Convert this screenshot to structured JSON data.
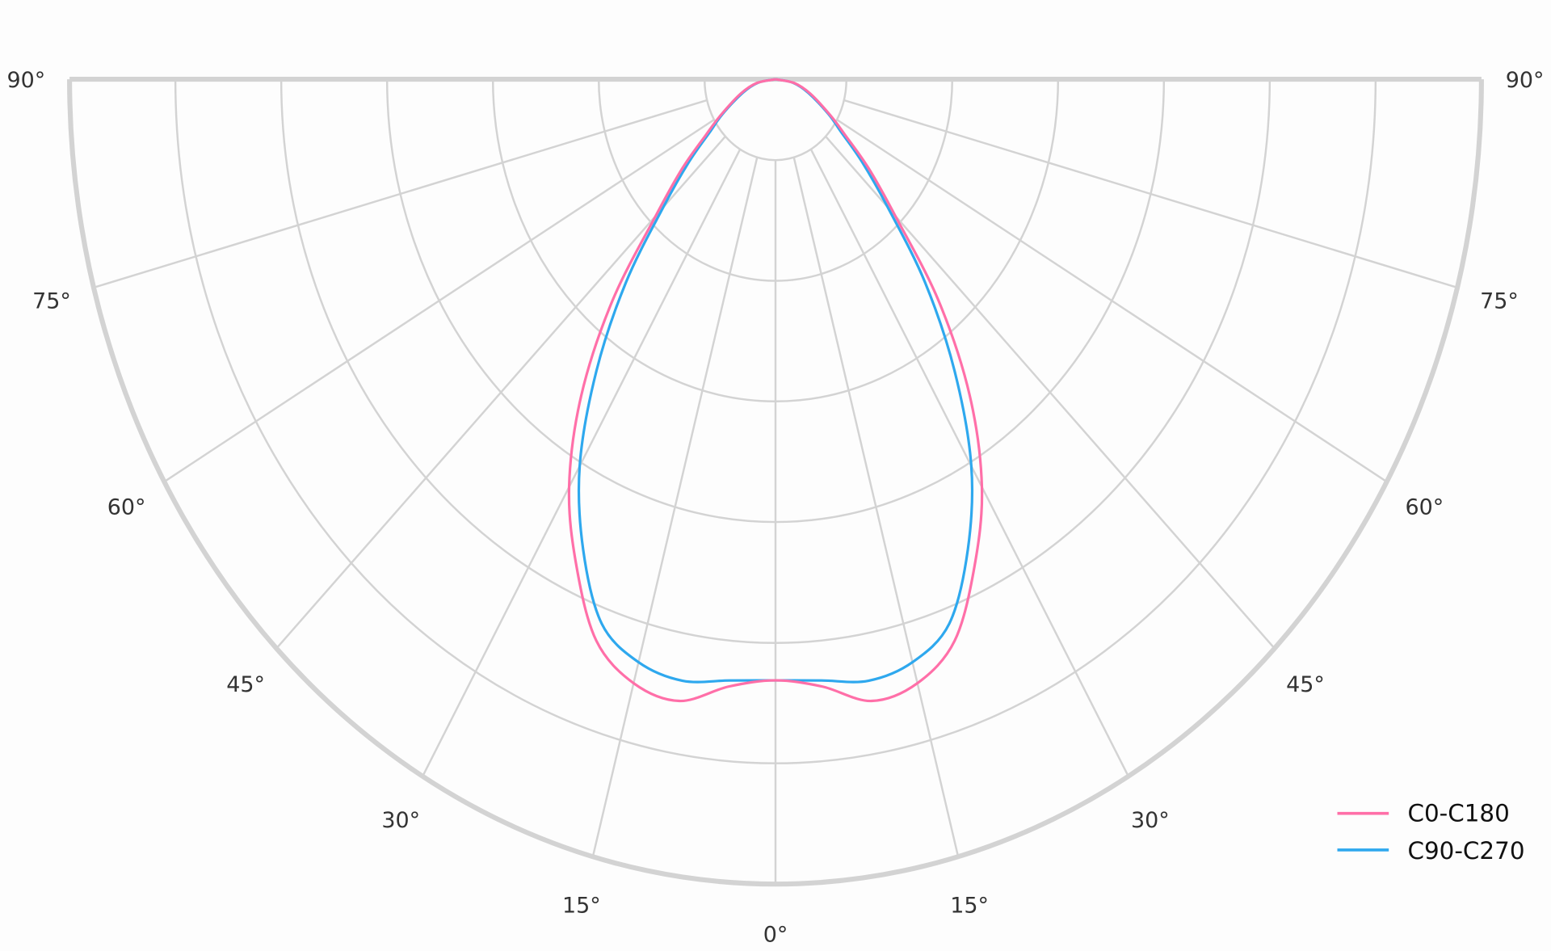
{
  "chart_data": {
    "type": "polar",
    "title": "",
    "angle_unit": "degrees",
    "angle_range": [
      -90,
      90
    ],
    "angle_zero": "bottom",
    "angle_ticks": [
      -90,
      -75,
      -60,
      -45,
      -30,
      -15,
      0,
      15,
      30,
      45,
      60,
      75,
      90
    ],
    "angle_tick_labels": [
      "90°",
      "75°",
      "60°",
      "45°",
      "30°",
      "15°",
      "0°",
      "15°",
      "30°",
      "45°",
      "60°",
      "75°",
      "90°"
    ],
    "radial_rings": [
      0.67,
      1.67,
      2.67,
      3.67,
      4.67,
      5.67,
      6.67
    ],
    "radial_max": 6.67,
    "radial_tick_labels": "none",
    "grid": true,
    "grid_color": "#d3d3d3",
    "legend_position": "bottom-right",
    "angles": [
      0,
      5,
      10,
      15,
      20,
      25,
      30,
      35,
      40,
      45,
      50,
      55,
      60,
      70,
      80,
      90
    ],
    "series": [
      {
        "name": "C0-C180",
        "color": "#ff6fa8",
        "r": [
          4.98,
          5.05,
          5.23,
          5.18,
          4.95,
          4.45,
          3.9,
          3.2,
          2.4,
          1.6,
          1.15,
          0.8,
          0.6,
          0.35,
          0.18,
          0
        ]
      },
      {
        "name": "C90-C270",
        "color": "#2ea8ee",
        "r": [
          4.98,
          5.0,
          5.06,
          5.0,
          4.8,
          4.3,
          3.7,
          2.95,
          2.2,
          1.5,
          1.07,
          0.75,
          0.58,
          0.33,
          0.17,
          0
        ]
      }
    ]
  }
}
